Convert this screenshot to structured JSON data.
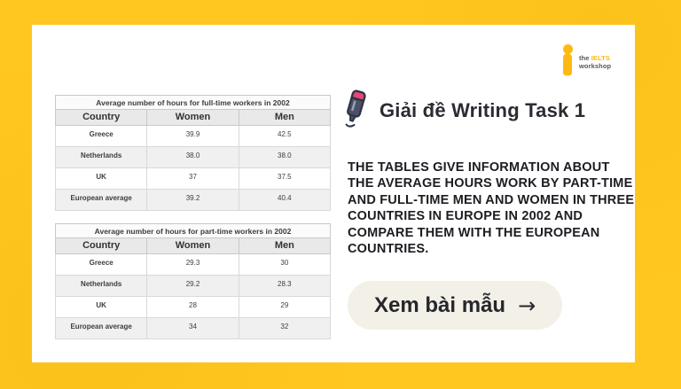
{
  "colors": {
    "background_yellow": "#ffc71f",
    "card_white": "#ffffff",
    "cta_background": "#f3f0e7",
    "text_dark": "#1c1c22",
    "logo_yellow": "#fdb813",
    "pencil_body": "#4a5065",
    "pencil_cap_pink": "#e54870",
    "table_header_gray": "#e9e9e9",
    "table_stripe_gray": "#f0f0f0"
  },
  "logo": {
    "symbol": "i-mark-icon",
    "line1_prefix": "the ",
    "line1_brand": "IELTS",
    "line2": "workshop"
  },
  "header": {
    "icon": "pencil-icon",
    "title": "Giải đề Writing Task 1"
  },
  "prompt_text": "THE TABLES GIVE INFORMATION ABOUT THE AVERAGE HOURS WORK BY PART-TIME AND FULL-TIME MEN AND WOMEN IN THREE COUNTRIES IN EUROPE IN 2002 AND COMPARE THEM WITH THE EUROPEAN COUNTRIES.",
  "cta": {
    "label": "Xem bài mẫu",
    "arrow": "→"
  },
  "chart_data": [
    {
      "type": "table",
      "title": "Average number of hours for full-time workers in 2002",
      "columns": [
        "Country",
        "Women",
        "Men"
      ],
      "rows": [
        [
          "Greece",
          "39.9",
          "42.5"
        ],
        [
          "Netherlands",
          "38.0",
          "38.0"
        ],
        [
          "UK",
          "37",
          "37.5"
        ],
        [
          "European average",
          "39.2",
          "40.4"
        ]
      ]
    },
    {
      "type": "table",
      "title": "Average number of hours for part-time workers in 2002",
      "columns": [
        "Country",
        "Women",
        "Men"
      ],
      "rows": [
        [
          "Greece",
          "29.3",
          "30"
        ],
        [
          "Netherlands",
          "29.2",
          "28.3"
        ],
        [
          "UK",
          "28",
          "29"
        ],
        [
          "European average",
          "34",
          "32"
        ]
      ]
    }
  ]
}
